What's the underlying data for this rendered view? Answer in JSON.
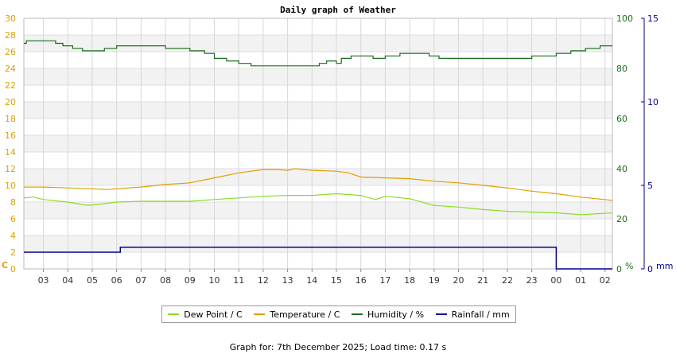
{
  "chart_data": {
    "type": "line",
    "title": "Daily graph of Weather",
    "x_ticks": [
      "03",
      "04",
      "05",
      "06",
      "07",
      "08",
      "09",
      "10",
      "11",
      "12",
      "13",
      "14",
      "15",
      "16",
      "17",
      "18",
      "19",
      "20",
      "21",
      "22",
      "23",
      "00",
      "01",
      "02"
    ],
    "x_range_hours": [
      2.2,
      26.3
    ],
    "axes": {
      "left": {
        "unit": "C",
        "min": 0,
        "max": 30,
        "ticks": [
          0,
          2,
          4,
          6,
          8,
          10,
          12,
          14,
          16,
          18,
          20,
          22,
          24,
          26,
          28,
          30
        ],
        "color": "#e0a000"
      },
      "right1": {
        "unit": "%",
        "min": 0,
        "max": 100,
        "ticks": [
          0,
          20,
          40,
          60,
          80,
          100
        ],
        "color": "#1a6e1a"
      },
      "right2": {
        "unit": "mm",
        "min": 0,
        "max": 15,
        "ticks": [
          0,
          5,
          10,
          15
        ],
        "color": "#000099"
      }
    },
    "series": [
      {
        "name": "Dew Point / C",
        "axis": "left",
        "color": "#88dd22",
        "x": [
          2.2,
          2.6,
          3.0,
          4.0,
          4.8,
          5.2,
          6.0,
          7.0,
          8.0,
          9.0,
          10.0,
          11.0,
          12.0,
          13.0,
          14.0,
          15.0,
          16.0,
          16.6,
          17.0,
          18.0,
          19.0,
          20.0,
          21.0,
          22.0,
          23.0,
          24.0,
          25.0,
          26.3
        ],
        "y": [
          8.5,
          8.6,
          8.3,
          8.0,
          7.6,
          7.7,
          8.0,
          8.1,
          8.1,
          8.1,
          8.3,
          8.5,
          8.7,
          8.8,
          8.8,
          9.0,
          8.8,
          8.3,
          8.7,
          8.4,
          7.6,
          7.4,
          7.1,
          6.9,
          6.8,
          6.7,
          6.5,
          6.7
        ]
      },
      {
        "name": "Temperature / C",
        "axis": "left",
        "color": "#e0a000",
        "x": [
          2.2,
          3.0,
          4.0,
          5.0,
          5.6,
          6.0,
          7.0,
          8.0,
          9.0,
          10.0,
          11.0,
          12.0,
          12.6,
          13.0,
          13.3,
          14.0,
          15.0,
          15.5,
          16.0,
          17.0,
          18.0,
          19.0,
          20.0,
          21.0,
          22.0,
          23.0,
          24.0,
          25.0,
          26.3
        ],
        "y": [
          9.8,
          9.8,
          9.7,
          9.6,
          9.5,
          9.6,
          9.8,
          10.1,
          10.3,
          10.9,
          11.5,
          11.9,
          11.9,
          11.8,
          12.0,
          11.8,
          11.7,
          11.5,
          11.0,
          10.9,
          10.8,
          10.5,
          10.3,
          10.0,
          9.7,
          9.3,
          9.0,
          8.6,
          8.2
        ]
      },
      {
        "name": "Humidity / %",
        "axis": "right1",
        "color": "#1a6e1a",
        "x": [
          2.2,
          2.3,
          3.0,
          3.2,
          3.5,
          3.8,
          4.2,
          4.6,
          5.2,
          5.5,
          6.0,
          6.5,
          7.0,
          7.5,
          8.0,
          8.5,
          9.0,
          9.6,
          10.0,
          10.5,
          11.0,
          11.5,
          12.0,
          12.5,
          13.0,
          13.5,
          14.0,
          14.3,
          14.6,
          15.0,
          15.2,
          15.6,
          16.0,
          16.5,
          17.0,
          17.6,
          18.2,
          18.8,
          19.2,
          19.6,
          20.0,
          20.5,
          21.0,
          21.5,
          22.0,
          22.5,
          23.0,
          23.5,
          24.0,
          24.6,
          25.2,
          25.8,
          26.3
        ],
        "y": [
          90,
          91,
          91,
          91,
          90,
          89,
          88,
          87,
          87,
          88,
          89,
          89,
          89,
          89,
          88,
          88,
          87,
          86,
          84,
          83,
          82,
          81,
          81,
          81,
          81,
          81,
          81,
          82,
          83,
          82,
          84,
          85,
          85,
          84,
          85,
          86,
          86,
          85,
          84,
          84,
          84,
          84,
          84,
          84,
          84,
          84,
          85,
          85,
          86,
          87,
          88,
          89,
          89
        ]
      },
      {
        "name": "Rainfall / mm",
        "axis": "right2",
        "color": "#000099",
        "x": [
          2.2,
          6.15,
          6.15,
          24.0,
          24.0,
          26.3
        ],
        "y": [
          1.0,
          1.0,
          1.3,
          1.3,
          0.0,
          0.0
        ]
      }
    ],
    "legend_position": "bottom-center",
    "grid": true
  },
  "footer": {
    "text": "Graph for: 7th December 2025; Load time: 0.17 s"
  }
}
